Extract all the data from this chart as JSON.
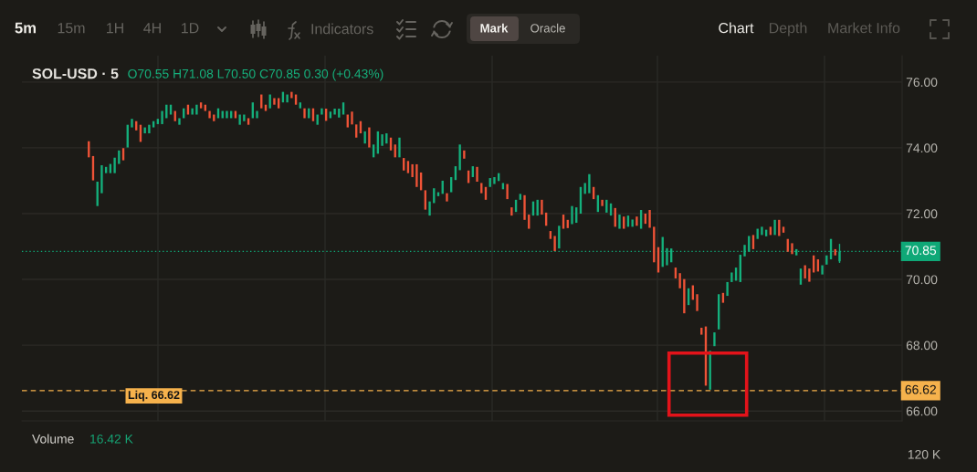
{
  "chart_data": {
    "type": "candlestick",
    "title": "SOL-USD · 5",
    "subtitle": "O70.55 H71.08 L70.50 C70.85 0.30 (+0.43%)",
    "categories": [
      null,
      null,
      null,
      null,
      null,
      null,
      null,
      null,
      null,
      null,
      null,
      null,
      null,
      null,
      null,
      null,
      null,
      null,
      null,
      null,
      null,
      null,
      null,
      null,
      null,
      null,
      null,
      null,
      null,
      null,
      null,
      null,
      null,
      null,
      null,
      null,
      null,
      null,
      null,
      null,
      null,
      null,
      null,
      null,
      null,
      null,
      null,
      null,
      null,
      null,
      null,
      null,
      null,
      null,
      null,
      null,
      null,
      null,
      null,
      null,
      null,
      null,
      null,
      null,
      null,
      null,
      null,
      null,
      null,
      null,
      null,
      null,
      null,
      null,
      null,
      null,
      null,
      null,
      null,
      null,
      null,
      null,
      null,
      null,
      null,
      null,
      null,
      null,
      null,
      null,
      null,
      null,
      null,
      null,
      null,
      null,
      null,
      null,
      null,
      null,
      null,
      null,
      null,
      null,
      null,
      null,
      null,
      null,
      null,
      null,
      null,
      null,
      null,
      null,
      null,
      null,
      null,
      null,
      null,
      null,
      null,
      null,
      null,
      null,
      null,
      null,
      null,
      null,
      null,
      null,
      null,
      null,
      null,
      null,
      null,
      null,
      null,
      null,
      null,
      null,
      null,
      null,
      null,
      null,
      null,
      null,
      null,
      null,
      null,
      null,
      null,
      null,
      null,
      null,
      null,
      null,
      null,
      null,
      null,
      null,
      null,
      null,
      null,
      null,
      null,
      null,
      null,
      null,
      null,
      null,
      null,
      null,
      null,
      null,
      null,
      null,
      null,
      null,
      null,
      null,
      null,
      null,
      null,
      null,
      null,
      null,
      null,
      null,
      null,
      null,
      null,
      null,
      null,
      null,
      null,
      null,
      null,
      null,
      null,
      null,
      null,
      null,
      null,
      null
    ],
    "ohlc": [
      null,
      null,
      null,
      null,
      null,
      null,
      null,
      null,
      null,
      null,
      null,
      null,
      null,
      null,
      null,
      [
        74.2,
        74.2,
        73.71,
        73.71
      ],
      [
        73.75,
        73.75,
        73.01,
        73.01
      ],
      [
        72.23,
        72.97,
        72.23,
        72.97
      ],
      [
        72.62,
        73.47,
        72.62,
        73.47
      ],
      [
        73.23,
        73.42,
        73.23,
        73.42
      ],
      [
        73.23,
        73.51,
        73.23,
        73.51
      ],
      [
        73.23,
        73.7,
        73.23,
        73.7
      ],
      [
        73.51,
        73.92,
        73.51,
        73.92
      ],
      [
        73.99,
        73.99,
        73.62,
        73.62
      ],
      [
        74.01,
        74.7,
        74.01,
        74.7
      ],
      [
        74.62,
        74.88,
        74.62,
        74.88
      ],
      [
        74.81,
        74.81,
        74.53,
        74.53
      ],
      [
        74.7,
        74.7,
        74.18,
        74.18
      ],
      [
        74.44,
        74.62,
        74.44,
        74.62
      ],
      [
        74.44,
        74.7,
        74.44,
        74.7
      ],
      [
        74.62,
        74.81,
        74.62,
        74.81
      ],
      [
        74.72,
        74.88,
        74.72,
        74.88
      ],
      [
        74.72,
        75.12,
        74.72,
        75.12
      ],
      [
        74.9,
        75.31,
        74.9,
        75.31
      ],
      [
        75.01,
        75.31,
        75.01,
        75.31
      ],
      [
        75.12,
        75.12,
        74.81,
        74.81
      ],
      [
        74.7,
        74.9,
        74.7,
        74.9
      ],
      [
        74.9,
        75.2,
        74.9,
        75.2
      ],
      [
        75.31,
        75.31,
        75.01,
        75.01
      ],
      [
        75.01,
        75.2,
        75.01,
        75.2
      ],
      [
        75.01,
        75.31,
        75.01,
        75.31
      ],
      [
        75.38,
        75.38,
        75.2,
        75.2
      ],
      [
        75.31,
        75.31,
        75.12,
        75.12
      ],
      [
        75.12,
        75.12,
        74.9,
        74.9
      ],
      [
        75.01,
        75.01,
        74.81,
        74.81
      ],
      [
        74.9,
        75.2,
        74.9,
        75.2
      ],
      [
        74.9,
        75.12,
        74.9,
        75.12
      ],
      [
        74.9,
        75.12,
        74.9,
        75.12
      ],
      [
        74.9,
        75.12,
        74.9,
        75.12
      ],
      [
        75.12,
        75.12,
        74.9,
        74.9
      ],
      [
        74.7,
        75.01,
        74.7,
        75.01
      ],
      [
        74.81,
        75.01,
        74.81,
        75.01
      ],
      [
        74.9,
        74.9,
        74.7,
        74.7
      ],
      [
        74.9,
        75.38,
        74.9,
        75.38
      ],
      [
        74.9,
        75.12,
        74.9,
        75.12
      ],
      [
        75.62,
        75.62,
        75.2,
        75.2
      ],
      [
        75.31,
        75.31,
        75.12,
        75.12
      ],
      [
        75.2,
        75.62,
        75.2,
        75.62
      ],
      [
        75.51,
        75.51,
        75.31,
        75.31
      ],
      [
        75.51,
        75.51,
        75.2,
        75.2
      ],
      [
        75.38,
        75.7,
        75.38,
        75.7
      ],
      [
        75.38,
        75.62,
        75.38,
        75.62
      ],
      [
        75.7,
        75.7,
        75.51,
        75.51
      ],
      [
        75.62,
        75.62,
        75.31,
        75.31
      ],
      [
        75.2,
        75.38,
        75.2,
        75.38
      ],
      [
        75.2,
        75.2,
        74.9,
        74.9
      ],
      [
        74.9,
        75.2,
        74.9,
        75.2
      ],
      [
        75.2,
        75.2,
        74.81,
        74.81
      ],
      [
        74.7,
        75.01,
        74.7,
        75.01
      ],
      [
        75.01,
        75.2,
        75.01,
        75.2
      ],
      [
        75.19,
        75.19,
        74.82,
        74.82
      ],
      [
        74.9,
        75.1,
        74.9,
        75.1
      ],
      [
        75.01,
        75.19,
        75.01,
        75.19
      ],
      [
        74.92,
        75.19,
        74.92,
        75.19
      ],
      [
        75.01,
        75.38,
        75.01,
        75.38
      ],
      [
        75.01,
        75.01,
        74.62,
        74.62
      ],
      [
        75.1,
        75.1,
        74.71,
        74.71
      ],
      [
        74.71,
        74.71,
        74.31,
        74.31
      ],
      [
        74.81,
        74.81,
        74.44,
        74.44
      ],
      [
        74.13,
        74.5,
        74.13,
        74.5
      ],
      [
        74.62,
        74.62,
        74.01,
        74.01
      ],
      [
        73.71,
        74.1,
        73.71,
        74.1
      ],
      [
        73.82,
        74.5,
        73.82,
        74.5
      ],
      [
        74.06,
        74.41,
        74.06,
        74.41
      ],
      [
        74.13,
        74.44,
        74.13,
        74.44
      ],
      [
        74.31,
        74.31,
        73.92,
        73.92
      ],
      [
        74.1,
        74.1,
        73.71,
        73.71
      ],
      [
        73.71,
        74.31,
        73.71,
        74.31
      ],
      [
        73.69,
        73.69,
        73.31,
        73.31
      ],
      [
        73.6,
        73.6,
        73.23,
        73.23
      ],
      [
        73.5,
        73.5,
        73.11,
        73.11
      ],
      [
        73.5,
        73.5,
        72.81,
        72.81
      ],
      [
        73.25,
        73.25,
        72.71,
        72.71
      ],
      [
        72.71,
        72.71,
        72.12,
        72.12
      ],
      [
        71.94,
        72.37,
        71.94,
        72.37
      ],
      [
        72.32,
        72.77,
        72.32,
        72.77
      ],
      [
        72.53,
        72.65,
        72.53,
        72.65
      ],
      [
        72.6,
        73.0,
        72.6,
        73.0
      ],
      [
        72.62,
        72.62,
        72.37,
        72.37
      ],
      [
        72.65,
        73.11,
        72.65,
        73.11
      ],
      [
        73.02,
        73.44,
        73.02,
        73.44
      ],
      [
        73.32,
        74.1,
        73.32,
        74.1
      ],
      [
        73.92,
        73.92,
        73.67,
        73.67
      ],
      [
        73.31,
        73.31,
        72.93,
        72.93
      ],
      [
        73.11,
        73.44,
        73.11,
        73.44
      ],
      [
        73.42,
        73.42,
        72.97,
        72.97
      ],
      [
        72.93,
        72.93,
        72.62,
        72.62
      ],
      [
        72.81,
        72.81,
        72.42,
        72.42
      ],
      [
        72.81,
        73.08,
        72.81,
        73.08
      ],
      [
        72.9,
        73.11,
        72.9,
        73.11
      ],
      [
        72.99,
        73.23,
        72.99,
        73.23
      ],
      [
        72.74,
        72.93,
        72.74,
        72.93
      ],
      [
        72.9,
        72.9,
        72.44,
        72.44
      ],
      [
        72.19,
        72.19,
        71.94,
        71.94
      ],
      [
        72.05,
        72.42,
        72.05,
        72.42
      ],
      [
        72.42,
        72.6,
        72.42,
        72.6
      ],
      [
        72.56,
        72.56,
        71.81,
        71.81
      ],
      [
        71.97,
        71.97,
        71.54,
        71.54
      ],
      [
        71.94,
        72.37,
        71.94,
        72.37
      ],
      [
        71.94,
        72.42,
        71.94,
        72.42
      ],
      [
        72.42,
        72.42,
        71.97,
        71.97
      ],
      [
        72.03,
        72.03,
        71.63,
        71.63
      ],
      [
        71.47,
        71.47,
        71.23,
        71.23
      ],
      [
        71.32,
        71.32,
        70.86,
        70.86
      ],
      [
        70.94,
        71.63,
        70.94,
        71.63
      ],
      [
        71.97,
        71.97,
        71.54,
        71.54
      ],
      [
        71.81,
        71.81,
        71.56,
        71.56
      ],
      [
        71.68,
        72.23,
        71.68,
        72.23
      ],
      [
        71.72,
        72.19,
        71.72,
        72.19
      ],
      [
        72.0,
        72.81,
        72.0,
        72.81
      ],
      [
        72.6,
        72.93,
        72.6,
        72.93
      ],
      [
        72.62,
        73.2,
        72.62,
        73.2
      ],
      [
        72.81,
        72.81,
        72.44,
        72.44
      ],
      [
        72.05,
        72.56,
        72.05,
        72.56
      ],
      [
        72.42,
        72.42,
        72.23,
        72.23
      ],
      [
        72.03,
        72.42,
        72.03,
        72.42
      ],
      [
        71.94,
        72.31,
        71.94,
        72.31
      ],
      [
        72.17,
        72.17,
        71.6,
        71.6
      ],
      [
        71.54,
        71.97,
        71.54,
        71.97
      ],
      [
        71.91,
        71.91,
        71.54,
        71.54
      ],
      [
        71.6,
        71.94,
        71.6,
        71.94
      ],
      [
        71.6,
        71.82,
        71.6,
        71.82
      ],
      [
        71.91,
        71.91,
        71.63,
        71.63
      ],
      [
        71.54,
        72.11,
        71.54,
        72.11
      ],
      [
        72.0,
        72.0,
        71.69,
        71.69
      ],
      [
        72.11,
        72.11,
        71.57,
        71.57
      ],
      [
        71.6,
        71.6,
        70.52,
        70.52
      ],
      [
        70.98,
        70.98,
        70.21,
        70.21
      ],
      [
        70.38,
        71.29,
        70.38,
        71.29
      ],
      [
        70.43,
        70.95,
        70.43,
        70.95
      ],
      [
        70.52,
        70.94,
        70.52,
        70.94
      ],
      [
        70.36,
        70.36,
        70.03,
        70.03
      ],
      [
        70.19,
        70.19,
        69.73,
        69.73
      ],
      [
        70.01,
        70.01,
        68.97,
        68.97
      ],
      [
        69.22,
        69.73,
        69.22,
        69.73
      ],
      [
        69.82,
        69.82,
        69.38,
        69.38
      ],
      [
        69.55,
        69.55,
        69.04,
        69.04
      ],
      [
        68.53,
        68.53,
        68.32,
        68.32
      ],
      [
        68.57,
        68.57,
        66.77,
        66.77
      ],
      [
        66.65,
        67.83,
        66.65,
        67.83
      ],
      [
        67.97,
        68.39,
        67.97,
        68.39
      ],
      [
        68.48,
        69.55,
        68.48,
        69.55
      ],
      [
        69.59,
        69.59,
        69.29,
        69.29
      ],
      [
        69.5,
        69.92,
        69.5,
        69.92
      ],
      [
        69.92,
        70.21,
        69.92,
        70.21
      ],
      [
        69.96,
        70.36,
        69.96,
        70.36
      ],
      [
        69.92,
        70.75,
        69.92,
        70.75
      ],
      [
        70.7,
        71.05,
        70.7,
        71.05
      ],
      [
        70.84,
        71.32,
        70.84,
        71.32
      ],
      [
        71.35,
        71.35,
        70.92,
        70.92
      ],
      [
        71.23,
        71.54,
        71.23,
        71.54
      ],
      [
        71.35,
        71.6,
        71.35,
        71.6
      ],
      [
        71.31,
        71.51,
        71.31,
        71.51
      ],
      [
        71.6,
        71.6,
        71.35,
        71.35
      ],
      [
        71.35,
        71.81,
        71.35,
        71.81
      ],
      [
        71.81,
        71.81,
        71.32,
        71.32
      ],
      [
        71.6,
        71.6,
        71.42,
        71.42
      ],
      [
        71.23,
        71.23,
        70.84,
        70.84
      ],
      [
        71.1,
        71.1,
        70.77,
        70.77
      ],
      [
        70.73,
        70.92,
        70.73,
        70.92
      ],
      [
        69.84,
        70.33,
        69.84,
        70.33
      ],
      [
        70.43,
        70.43,
        70.03,
        70.03
      ],
      [
        70.33,
        70.33,
        69.93,
        69.93
      ],
      [
        70.73,
        70.73,
        70.21,
        70.21
      ],
      [
        70.61,
        70.61,
        70.24,
        70.24
      ],
      [
        70.15,
        70.43,
        70.15,
        70.43
      ],
      [
        70.45,
        70.73,
        70.45,
        70.73
      ],
      [
        70.61,
        71.23,
        70.61,
        71.23
      ],
      [
        70.92,
        70.92,
        70.73,
        70.73
      ],
      [
        70.55,
        71.08,
        70.5,
        70.85
      ],
      null,
      null,
      null,
      null,
      null,
      null,
      null,
      null,
      null,
      null,
      null,
      null,
      null,
      null
    ],
    "colors": [
      null,
      null,
      null,
      null,
      null,
      null,
      null,
      null,
      null,
      null,
      null,
      null,
      null,
      null,
      null,
      "#ef5337",
      "#ef5337",
      "#14b07c",
      "#14b07c",
      "#14b07c",
      "#14b07c",
      "#14b07c",
      "#14b07c",
      "#ef5337",
      "#14b07c",
      "#14b07c",
      "#ef5337",
      "#ef5337",
      "#14b07c",
      "#14b07c",
      "#14b07c",
      "#14b07c",
      "#14b07c",
      "#14b07c",
      "#14b07c",
      "#ef5337",
      "#14b07c",
      "#14b07c",
      "#ef5337",
      "#14b07c",
      "#14b07c",
      "#ef5337",
      "#ef5337",
      "#ef5337",
      "#ef5337",
      "#14b07c",
      "#14b07c",
      "#14b07c",
      "#14b07c",
      "#ef5337",
      "#14b07c",
      "#14b07c",
      "#ef5337",
      "#14b07c",
      "#14b07c",
      "#ef5337",
      "#ef5337",
      "#14b07c",
      "#ef5337",
      "#ef5337",
      "#14b07c",
      "#14b07c",
      "#ef5337",
      "#ef5337",
      "#14b07c",
      "#ef5337",
      "#14b07c",
      "#ef5337",
      "#14b07c",
      "#14b07c",
      "#ef5337",
      "#14b07c",
      "#14b07c",
      "#14b07c",
      "#14b07c",
      "#ef5337",
      "#ef5337",
      "#ef5337",
      "#ef5337",
      "#14b07c",
      "#ef5337",
      "#14b07c",
      "#14b07c",
      "#14b07c",
      "#14b07c",
      "#ef5337",
      "#ef5337",
      "#14b07c",
      "#ef5337",
      "#ef5337",
      "#ef5337",
      "#ef5337",
      "#ef5337",
      "#ef5337",
      "#14b07c",
      "#14b07c",
      "#14b07c",
      "#14b07c",
      "#ef5337",
      "#14b07c",
      "#14b07c",
      "#14b07c",
      "#ef5337",
      "#ef5337",
      "#14b07c",
      "#ef5337",
      "#ef5337",
      "#ef5337",
      "#14b07c",
      "#14b07c",
      "#14b07c",
      "#14b07c",
      "#ef5337",
      "#ef5337",
      "#14b07c",
      "#14b07c",
      "#ef5337",
      "#ef5337",
      "#14b07c",
      "#14b07c",
      "#ef5337",
      "#ef5337",
      "#ef5337",
      "#ef5337",
      "#14b07c",
      "#ef5337",
      "#ef5337",
      "#14b07c",
      "#14b07c",
      "#14b07c",
      "#14b07c",
      "#14b07c",
      "#ef5337",
      "#14b07c",
      "#ef5337",
      "#14b07c",
      "#14b07c",
      "#ef5337",
      "#14b07c",
      "#ef5337",
      "#14b07c",
      "#14b07c",
      "#ef5337",
      "#14b07c",
      "#ef5337",
      "#ef5337",
      "#ef5337",
      "#ef5337",
      "#14b07c",
      "#14b07c",
      "#14b07c",
      "#ef5337",
      "#ef5337",
      "#ef5337",
      "#14b07c",
      "#ef5337",
      "#ef5337",
      "#ef5337",
      "#ef5337",
      "#14b07c",
      "#14b07c",
      "#14b07c",
      "#ef5337",
      "#14b07c",
      "#14b07c",
      "#14b07c",
      "#14b07c",
      "#14b07c",
      "#14b07c",
      "#ef5337",
      "#14b07c",
      "#14b07c",
      "#14b07c",
      "#ef5337",
      "#14b07c",
      "#ef5337",
      "#ef5337",
      "#ef5337",
      "#ef5337",
      "#14b07c",
      "#14b07c",
      "#ef5337",
      "#ef5337",
      "#ef5337",
      "#ef5337",
      "#14b07c",
      "#14b07c",
      "#14b07c",
      "#ef5337",
      "#14b07c",
      null,
      null,
      null,
      null,
      null,
      null,
      null,
      null,
      null,
      null,
      null,
      null,
      null,
      null
    ],
    "ylim": [
      65.7,
      76.8
    ],
    "yticks": [
      {
        "value": 66,
        "label": "66.00"
      },
      {
        "value": 68,
        "label": "68.00"
      },
      {
        "value": 70,
        "label": "70.00"
      },
      {
        "value": 72,
        "label": "72.00"
      },
      {
        "value": 74,
        "label": "74.00"
      },
      {
        "value": 76,
        "label": "76.00"
      }
    ],
    "grid": true,
    "tick_labels": "y",
    "ref_lines": [
      {
        "axis": "y",
        "value": 70.85,
        "label": "70.85",
        "color": "#0fa877",
        "line_style": "dotted"
      },
      {
        "axis": "y",
        "value": 66.62,
        "label": "66.62",
        "color": "#f6b24c",
        "line_style": "dashed"
      }
    ],
    "annotations": [
      "5m",
      "15m",
      "1H",
      "4H",
      "1D",
      "Indicators",
      "Mark",
      "Oracle",
      "Chart",
      "Depth",
      "Market Info",
      "Volume",
      "16.42 K",
      "120 K",
      {
        "text": "Liq. 66.62",
        "y": 66.62
      }
    ]
  }
}
